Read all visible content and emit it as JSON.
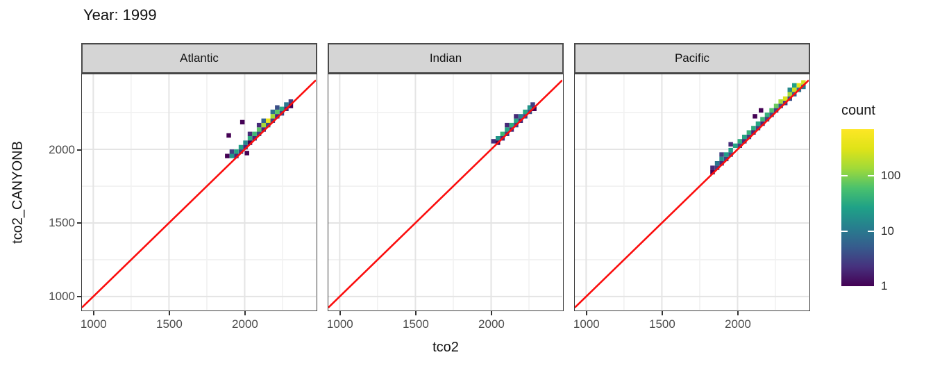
{
  "title": "Year: 1999",
  "chart_data": {
    "type": "heatmap",
    "title": "Year: 1999",
    "xlabel": "tco2",
    "ylabel": "tco2_CANYONB",
    "x_range": [
      925,
      2470
    ],
    "y_range": [
      910,
      2510
    ],
    "x_ticks": {
      "major": [
        1000,
        1500,
        2000
      ],
      "minor": [
        1250,
        1750,
        2250
      ]
    },
    "y_ticks": {
      "major": [
        1000,
        1500,
        2000
      ],
      "minor": [
        1250,
        1750,
        2250
      ]
    },
    "bin_size": 30,
    "identity_line": {
      "color": "#fb0d0d",
      "width": 2.6
    },
    "legend": {
      "title": "count",
      "scale": "log10",
      "max": 700,
      "ticks": [
        1,
        10,
        100
      ],
      "viridis_stops": [
        "#440154",
        "#46327e",
        "#365c8d",
        "#277f8e",
        "#1fa187",
        "#4ac16d",
        "#a0da39",
        "#dfe318",
        "#fde725"
      ]
    },
    "colors": {
      "strip_fill": "#d5d5d5",
      "strip_border": "#4a4a4a",
      "panel_border": "#3c3c3c",
      "grid_major": "#e4e4e4",
      "grid_minor": "#f1f1f1",
      "tick_label": "#4d4d4d",
      "text": "#141414"
    },
    "facets": [
      {
        "label": "Atlantic",
        "bins": [
          [
            1900,
            1940,
            20
          ],
          [
            1930,
            1970,
            30
          ],
          [
            1960,
            2000,
            25
          ],
          [
            1990,
            2030,
            15
          ],
          [
            2020,
            2060,
            35
          ],
          [
            2050,
            2090,
            50
          ],
          [
            2080,
            2120,
            70
          ],
          [
            2110,
            2150,
            150
          ],
          [
            2140,
            2180,
            450
          ],
          [
            2170,
            2210,
            150
          ],
          [
            2200,
            2240,
            70
          ],
          [
            2230,
            2260,
            30
          ],
          [
            2260,
            2290,
            10
          ],
          [
            1930,
            1940,
            2
          ],
          [
            1960,
            1970,
            3
          ],
          [
            1990,
            2000,
            2
          ],
          [
            2020,
            2030,
            1
          ],
          [
            2050,
            2060,
            2
          ],
          [
            2080,
            2090,
            3
          ],
          [
            2110,
            2120,
            2
          ],
          [
            2140,
            2150,
            4
          ],
          [
            2170,
            2180,
            3
          ],
          [
            2200,
            2210,
            2
          ],
          [
            2230,
            2230,
            3
          ],
          [
            2260,
            2260,
            2
          ],
          [
            2290,
            2310,
            3
          ],
          [
            2290,
            2280,
            1
          ],
          [
            2020,
            2090,
            2
          ],
          [
            2080,
            2150,
            2
          ],
          [
            2110,
            2180,
            6
          ],
          [
            2170,
            2240,
            8
          ],
          [
            2200,
            2270,
            4
          ],
          [
            1900,
            1970,
            3
          ],
          [
            1870,
            1940,
            1
          ],
          [
            2000,
            1960,
            1
          ],
          [
            1880,
            2080,
            1
          ],
          [
            1970,
            2170,
            1
          ]
        ]
      },
      {
        "label": "Indian",
        "bins": [
          [
            2030,
            2060,
            20
          ],
          [
            2060,
            2090,
            45
          ],
          [
            2090,
            2120,
            30
          ],
          [
            2120,
            2150,
            35
          ],
          [
            2150,
            2180,
            30
          ],
          [
            2180,
            2210,
            12
          ],
          [
            2210,
            2240,
            30
          ],
          [
            2240,
            2270,
            20
          ],
          [
            2000,
            2040,
            2
          ],
          [
            2030,
            2030,
            1
          ],
          [
            2060,
            2060,
            2
          ],
          [
            2090,
            2090,
            3
          ],
          [
            2120,
            2120,
            2
          ],
          [
            2150,
            2150,
            3
          ],
          [
            2180,
            2180,
            2
          ],
          [
            2210,
            2210,
            3
          ],
          [
            2240,
            2240,
            4
          ],
          [
            2090,
            2150,
            2
          ],
          [
            2150,
            2210,
            2
          ],
          [
            2260,
            2290,
            3
          ],
          [
            2270,
            2260,
            1
          ]
        ]
      },
      {
        "label": "Pacific",
        "bins": [
          [
            1820,
            1860,
            2
          ],
          [
            1850,
            1890,
            10
          ],
          [
            1880,
            1920,
            18
          ],
          [
            1910,
            1950,
            25
          ],
          [
            1940,
            1980,
            25
          ],
          [
            1970,
            2010,
            30
          ],
          [
            2000,
            2040,
            35
          ],
          [
            2030,
            2070,
            30
          ],
          [
            2060,
            2100,
            40
          ],
          [
            2090,
            2130,
            35
          ],
          [
            2120,
            2160,
            30
          ],
          [
            2150,
            2190,
            45
          ],
          [
            2180,
            2220,
            40
          ],
          [
            2210,
            2250,
            60
          ],
          [
            2240,
            2280,
            80
          ],
          [
            2270,
            2310,
            150
          ],
          [
            2300,
            2330,
            300
          ],
          [
            2330,
            2360,
            150
          ],
          [
            2360,
            2390,
            250
          ],
          [
            2390,
            2420,
            400
          ],
          [
            2420,
            2440,
            250
          ],
          [
            1820,
            1830,
            1
          ],
          [
            1850,
            1860,
            3
          ],
          [
            1880,
            1890,
            2
          ],
          [
            1880,
            1950,
            3
          ],
          [
            1910,
            1920,
            3
          ],
          [
            1940,
            1950,
            4
          ],
          [
            2000,
            2010,
            3
          ],
          [
            2030,
            2040,
            2
          ],
          [
            2060,
            2070,
            3
          ],
          [
            2090,
            2100,
            2
          ],
          [
            2120,
            2130,
            3
          ],
          [
            2150,
            2160,
            2
          ],
          [
            2180,
            2190,
            3
          ],
          [
            2210,
            2220,
            4
          ],
          [
            2240,
            2250,
            3
          ],
          [
            2270,
            2280,
            4
          ],
          [
            2300,
            2300,
            3
          ],
          [
            2330,
            2330,
            4
          ],
          [
            2360,
            2360,
            6
          ],
          [
            2390,
            2390,
            8
          ],
          [
            2420,
            2410,
            10
          ],
          [
            2100,
            2210,
            1
          ],
          [
            2140,
            2250,
            1
          ],
          [
            1940,
            2020,
            2
          ],
          [
            2330,
            2390,
            15
          ],
          [
            2360,
            2420,
            25
          ]
        ]
      }
    ]
  }
}
